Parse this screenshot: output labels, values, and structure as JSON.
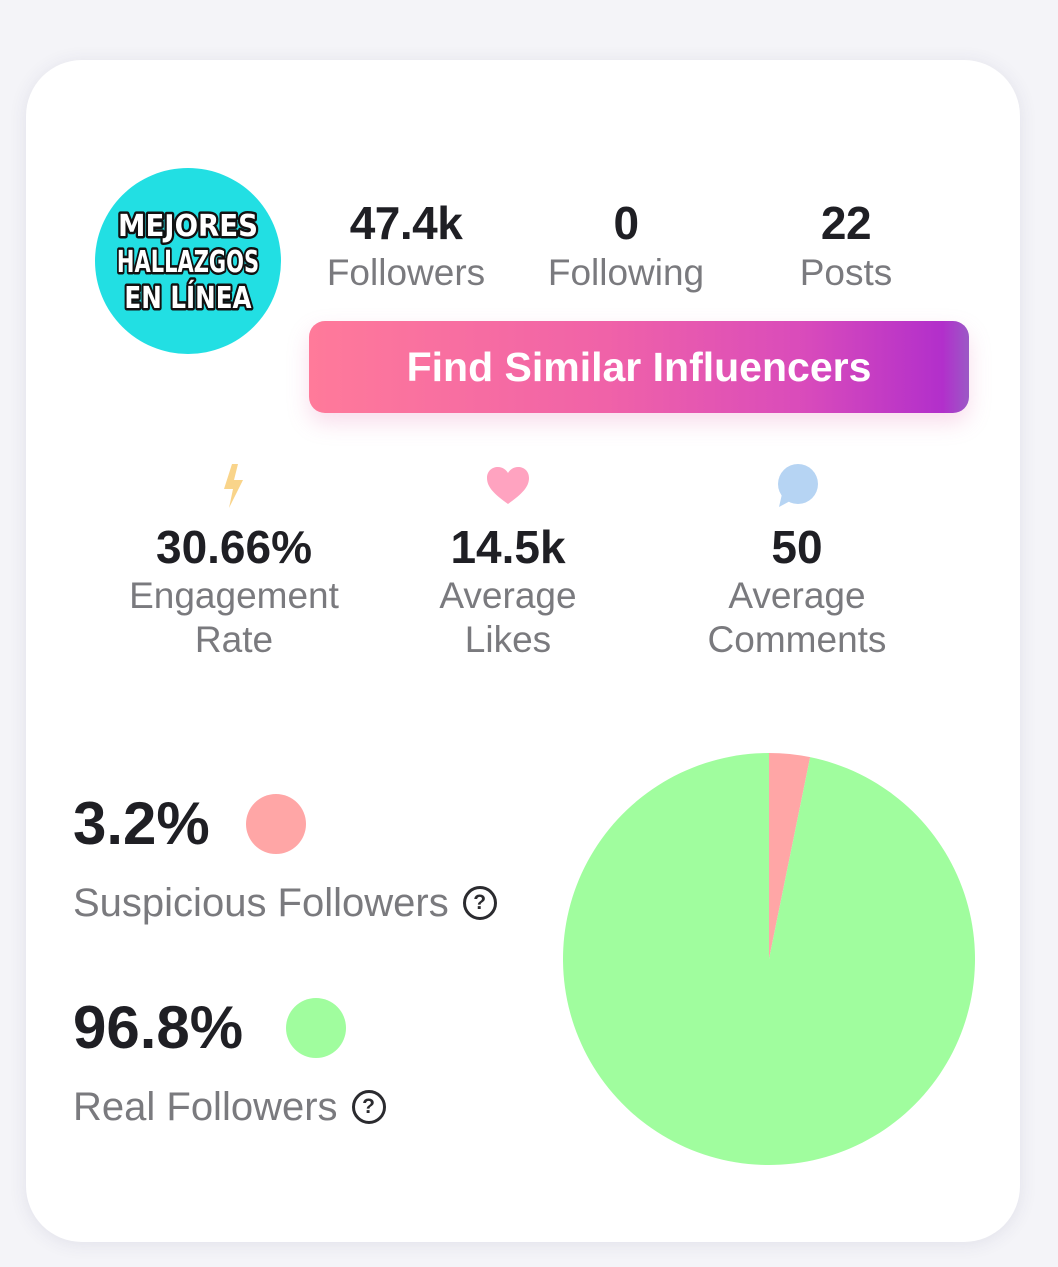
{
  "avatar": {
    "logo_lines": [
      "MEJORES",
      "HALLAZGOS",
      "EN LÍNEA"
    ],
    "background_color": "#22dfe3"
  },
  "profile_stats": [
    {
      "value": "47.4k",
      "label": "Followers"
    },
    {
      "value": "0",
      "label": "Following"
    },
    {
      "value": "22",
      "label": "Posts"
    }
  ],
  "cta": {
    "label": "Find Similar Influencers"
  },
  "metrics": [
    {
      "icon": "lightning-icon",
      "value": "30.66%",
      "label_line1": "Engagement",
      "label_line2": "Rate",
      "icon_color": "#f9d48a"
    },
    {
      "icon": "heart-icon",
      "value": "14.5k",
      "label_line1": "Average",
      "label_line2": "Likes",
      "icon_color": "#ffa3c0"
    },
    {
      "icon": "speech-bubble-icon",
      "value": "50",
      "label_line1": "Average",
      "label_line2": "Comments",
      "icon_color": "#b6d4f3"
    }
  ],
  "audience": {
    "suspicious": {
      "percent": "3.2%",
      "label": "Suspicious Followers",
      "color": "#ffa6a6"
    },
    "real": {
      "percent": "96.8%",
      "label": "Real Followers",
      "color": "#a0fd9e"
    },
    "help_icon": "?"
  },
  "chart_data": {
    "type": "pie",
    "categories": [
      "Suspicious Followers",
      "Real Followers"
    ],
    "values": [
      3.2,
      96.8
    ],
    "colors": [
      "#ffa6a6",
      "#a0fd9e"
    ],
    "start_angle_deg": 0,
    "direction": "clockwise"
  }
}
